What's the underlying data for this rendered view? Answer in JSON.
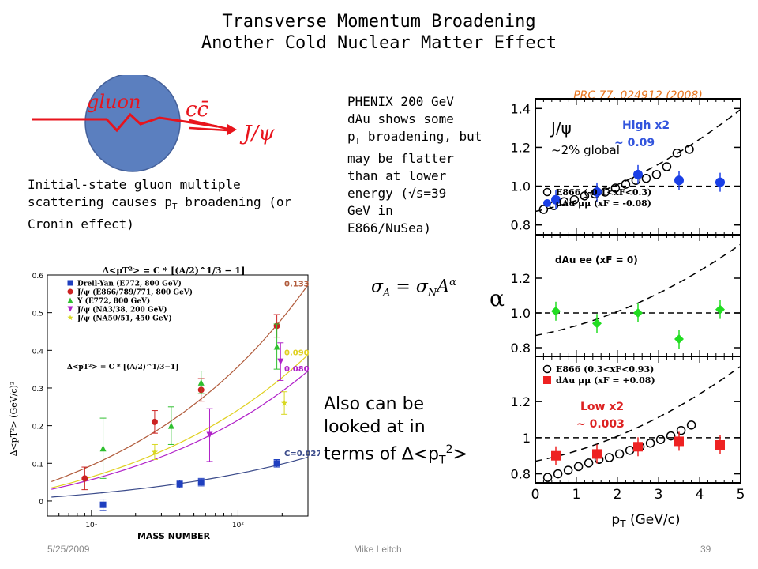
{
  "slide": {
    "title_line1": "Transverse Momentum Broadening",
    "title_line2": "Another Cold Nuclear Matter Effect",
    "caption_left": "Initial-state gluon multiple scattering causes p",
    "caption_left_sub": "T",
    "caption_left_end": " broadening (or Cronin effect)",
    "phenix_lines": [
      "PHENIX 200 GeV",
      "dAu shows some",
      "p",
      "T",
      " broadening, but",
      "may be flatter",
      "than at lower",
      "energy (√s=39",
      "GeV in",
      "E866/NuSea)"
    ],
    "also_line1": "Also can be",
    "also_line2": "looked at in",
    "also_line3_pre": "terms of ",
    "also_line3_delta": "∆",
    "also_line3_mid": "<p",
    "also_line3_sub": "T",
    "also_line3_sup": "2",
    "also_line3_end": ">",
    "formula": "σ_A = σ_N A^α",
    "footer_date": "5/25/2009",
    "footer_author": "Mike Leitch",
    "footer_page": "39"
  },
  "diagram": {
    "gluon": "gluon",
    "cc": "cc̄",
    "jpsi": "J/ψ",
    "circle_color": "#5b7fbf",
    "line_color": "#e8141c"
  },
  "chart_data": [
    {
      "type": "scatter",
      "title": "∆<pT²> = C * [(A/2)^1/3 − 1]",
      "annotation": "∆<pT²> = C * [(A/2)^1/3−1]",
      "xlabel": "MASS NUMBER",
      "ylabel": "∆<pT²> (GeV/c)²",
      "xscale": "log",
      "xlim": [
        5,
        300
      ],
      "ylim": [
        -0.04,
        0.6
      ],
      "yticks": [
        "0",
        "0.1",
        "0.2",
        "0.3",
        "0.4",
        "0.5",
        "0.6"
      ],
      "xticks": [
        "10¹",
        "10²"
      ],
      "series": [
        {
          "name": "Drell-Yan (E772, 800 GeV)",
          "color": "#1f3fbf",
          "marker": "square",
          "x": [
            12,
            40,
            56,
            184
          ],
          "y": [
            -0.01,
            0.045,
            0.05,
            0.1
          ],
          "err": [
            0.015,
            0.01,
            0.01,
            0.01
          ]
        },
        {
          "name": "J/ψ (E866/789/771, 800 GeV)",
          "color": "#cc2222",
          "marker": "circle",
          "x": [
            9,
            27,
            56,
            184
          ],
          "y": [
            0.06,
            0.21,
            0.295,
            0.465
          ],
          "err": [
            0.03,
            0.03,
            0.03,
            0.03
          ]
        },
        {
          "name": "Υ (E772, 800 GeV)",
          "color": "#2fbf2f",
          "marker": "triangle-up",
          "x": [
            12,
            35,
            56,
            184
          ],
          "y": [
            0.14,
            0.2,
            0.315,
            0.41
          ],
          "err": [
            0.08,
            0.05,
            0.03,
            0.06
          ]
        },
        {
          "name": "J/ψ (NA3/38, 200 GeV)",
          "color": "#b020c8",
          "marker": "triangle-down",
          "x": [
            64,
            195
          ],
          "y": [
            0.175,
            0.37
          ],
          "err": [
            0.07,
            0.05
          ]
        },
        {
          "name": "J/ψ (NA50/51, 450 GeV)",
          "color": "#d8d820",
          "marker": "star",
          "x": [
            27,
            207
          ],
          "y": [
            0.13,
            0.26
          ],
          "err": [
            0.02,
            0.03
          ]
        }
      ],
      "curves": [
        {
          "C": 0.133,
          "label": "0.133",
          "color": "#b05a3a"
        },
        {
          "C": 0.09,
          "label": "0.090",
          "color": "#e0d020"
        },
        {
          "C": 0.08,
          "label": "0.080",
          "color": "#b020c8"
        },
        {
          "C": 0.027,
          "label": "C=0.027",
          "color": "#3a4a8a"
        }
      ]
    },
    {
      "type": "scatter",
      "reference": "PRC  77, 024912 (2008)",
      "xlabel": "pT (GeV/c)",
      "ylabel": "α",
      "xlim": [
        0,
        5
      ],
      "xticks": [
        "0",
        "1",
        "2",
        "3",
        "4",
        "5"
      ],
      "panels": [
        {
          "label": "J/ψ",
          "sublabel": "~2% global",
          "tag": "High x2",
          "tag_value": "~ 0.09",
          "tag_color": "#3355dd",
          "ylim": [
            0.75,
            1.45
          ],
          "yticks": [
            "0.8",
            "1.0",
            "1.2",
            "1.4"
          ],
          "legend": [
            "E866 (-0.1<xF<0.3)",
            "dAu μμ (xF = -0.08)"
          ],
          "points": {
            "x": [
              0.5,
              1.5,
              2.5,
              3.5,
              4.5
            ],
            "y": [
              0.93,
              0.97,
              1.06,
              1.03,
              1.02
            ],
            "color": "#1a3fe6"
          },
          "e866": {
            "x": [
              0.2,
              0.45,
              0.7,
              0.95,
              1.2,
              1.45,
              1.7,
              1.95,
              2.2,
              2.45,
              2.7,
              2.95,
              3.2,
              3.45,
              3.75
            ],
            "y": [
              0.88,
              0.9,
              0.92,
              0.93,
              0.95,
              0.96,
              0.97,
              0.99,
              1.01,
              1.03,
              1.04,
              1.06,
              1.1,
              1.17,
              1.19
            ]
          }
        },
        {
          "label": "dAu ee (xF = 0)",
          "ylim": [
            0.75,
            1.45
          ],
          "yticks": [
            "0.8",
            "1.0",
            "1.2"
          ],
          "points": {
            "x": [
              0.5,
              1.5,
              2.5,
              3.5,
              4.5
            ],
            "y": [
              1.01,
              0.94,
              1.0,
              0.85,
              1.02
            ],
            "color": "#22dd22"
          }
        },
        {
          "tag": "Low x2",
          "tag_value": "~ 0.003",
          "tag_color": "#dd2222",
          "ylim": [
            0.75,
            1.45
          ],
          "yticks": [
            "0.8",
            "1",
            "1.2"
          ],
          "legend": [
            "E866 (0.3<xF<0.93)",
            "dAu μμ (xF = +0.08)"
          ],
          "points": {
            "x": [
              0.5,
              1.5,
              2.5,
              3.5,
              4.5
            ],
            "y": [
              0.9,
              0.91,
              0.95,
              0.98,
              0.96
            ],
            "color": "#ee2222"
          },
          "e866": {
            "x": [
              0.3,
              0.55,
              0.8,
              1.05,
              1.3,
              1.55,
              1.8,
              2.05,
              2.3,
              2.55,
              2.8,
              3.05,
              3.3,
              3.55,
              3.8
            ],
            "y": [
              0.78,
              0.8,
              0.82,
              0.84,
              0.86,
              0.88,
              0.89,
              0.91,
              0.93,
              0.95,
              0.97,
              0.99,
              1.01,
              1.04,
              1.07
            ]
          }
        }
      ]
    }
  ]
}
